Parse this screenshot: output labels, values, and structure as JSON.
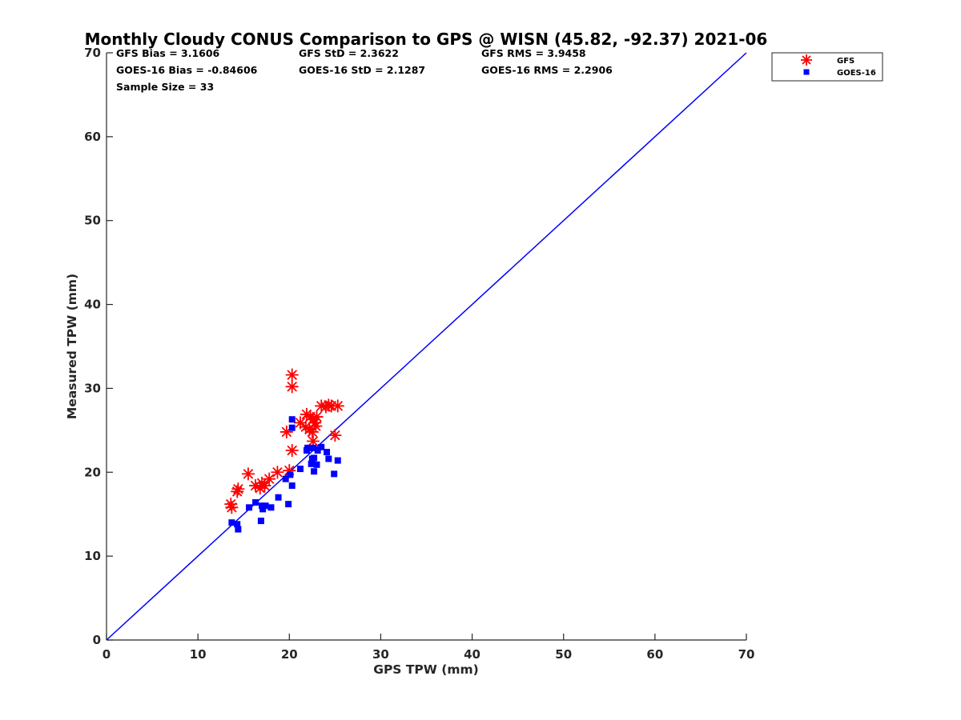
{
  "chart_data": {
    "type": "scatter",
    "title": "Monthly Cloudy CONUS Comparison to GPS @ WISN (45.82, -92.37) 2021-06",
    "xlabel": "GPS TPW (mm)",
    "ylabel": "Measured TPW (mm)",
    "xlim": [
      0,
      70
    ],
    "ylim": [
      0,
      70
    ],
    "xticks": [
      "0",
      "10",
      "20",
      "30",
      "40",
      "50",
      "60",
      "70"
    ],
    "yticks": [
      "0",
      "10",
      "20",
      "30",
      "40",
      "50",
      "60",
      "70"
    ],
    "grid": false,
    "legend_position": "top-right",
    "stats": {
      "gfs_bias": "GFS Bias = 3.1606",
      "gfs_std": "GFS StD = 2.3622",
      "gfs_rms": "GFS RMS = 3.9458",
      "goes_bias": "GOES-16 Bias = -0.84606",
      "goes_std": "GOES-16 StD = 2.1287",
      "goes_rms": "GOES-16 RMS = 2.2906",
      "sample_size": "Sample Size = 33"
    },
    "reference_line": {
      "x": [
        0,
        70
      ],
      "y": [
        0,
        70
      ],
      "color": "#0000ff"
    },
    "series": [
      {
        "name": "GFS",
        "marker": "asterisk",
        "color": "#ff0000",
        "points": [
          [
            13.6,
            16.2
          ],
          [
            13.7,
            15.8
          ],
          [
            14.3,
            17.7
          ],
          [
            14.4,
            18.0
          ],
          [
            15.5,
            19.8
          ],
          [
            16.3,
            18.4
          ],
          [
            16.8,
            18.1
          ],
          [
            17.0,
            18.7
          ],
          [
            17.3,
            18.4
          ],
          [
            17.8,
            19.2
          ],
          [
            18.7,
            20.0
          ],
          [
            19.7,
            24.8
          ],
          [
            20.0,
            20.2
          ],
          [
            20.3,
            31.6
          ],
          [
            20.3,
            30.2
          ],
          [
            20.3,
            22.6
          ],
          [
            21.2,
            25.9
          ],
          [
            21.9,
            26.9
          ],
          [
            22.2,
            25.1
          ],
          [
            22.3,
            26.6
          ],
          [
            22.5,
            24.8
          ],
          [
            22.6,
            23.7
          ],
          [
            22.6,
            26.3
          ],
          [
            22.8,
            25.9
          ],
          [
            22.9,
            25.5
          ],
          [
            23.0,
            26.6
          ],
          [
            23.5,
            27.9
          ],
          [
            24.0,
            27.8
          ],
          [
            24.3,
            28.0
          ],
          [
            24.6,
            27.9
          ],
          [
            25.0,
            24.4
          ],
          [
            25.3,
            27.9
          ],
          [
            21.8,
            25.4
          ]
        ]
      },
      {
        "name": "GOES-16",
        "marker": "square",
        "color": "#0000ff",
        "points": [
          [
            13.7,
            14.0
          ],
          [
            14.3,
            13.8
          ],
          [
            14.4,
            13.2
          ],
          [
            15.6,
            15.8
          ],
          [
            16.3,
            16.4
          ],
          [
            16.9,
            14.2
          ],
          [
            17.0,
            16.0
          ],
          [
            17.1,
            15.6
          ],
          [
            17.4,
            16.0
          ],
          [
            18.0,
            15.8
          ],
          [
            18.8,
            17.0
          ],
          [
            19.6,
            19.2
          ],
          [
            19.9,
            16.2
          ],
          [
            20.1,
            19.7
          ],
          [
            20.3,
            18.4
          ],
          [
            20.3,
            26.3
          ],
          [
            20.3,
            25.3
          ],
          [
            21.2,
            20.4
          ],
          [
            21.9,
            22.6
          ],
          [
            22.0,
            22.9
          ],
          [
            22.3,
            22.9
          ],
          [
            22.4,
            21.0
          ],
          [
            22.6,
            22.9
          ],
          [
            22.7,
            21.7
          ],
          [
            22.7,
            20.1
          ],
          [
            23.0,
            20.9
          ],
          [
            23.5,
            23.0
          ],
          [
            24.1,
            22.4
          ],
          [
            24.3,
            21.6
          ],
          [
            24.9,
            19.8
          ],
          [
            25.3,
            21.4
          ],
          [
            22.5,
            21.6
          ],
          [
            23.1,
            22.6
          ]
        ]
      }
    ]
  }
}
